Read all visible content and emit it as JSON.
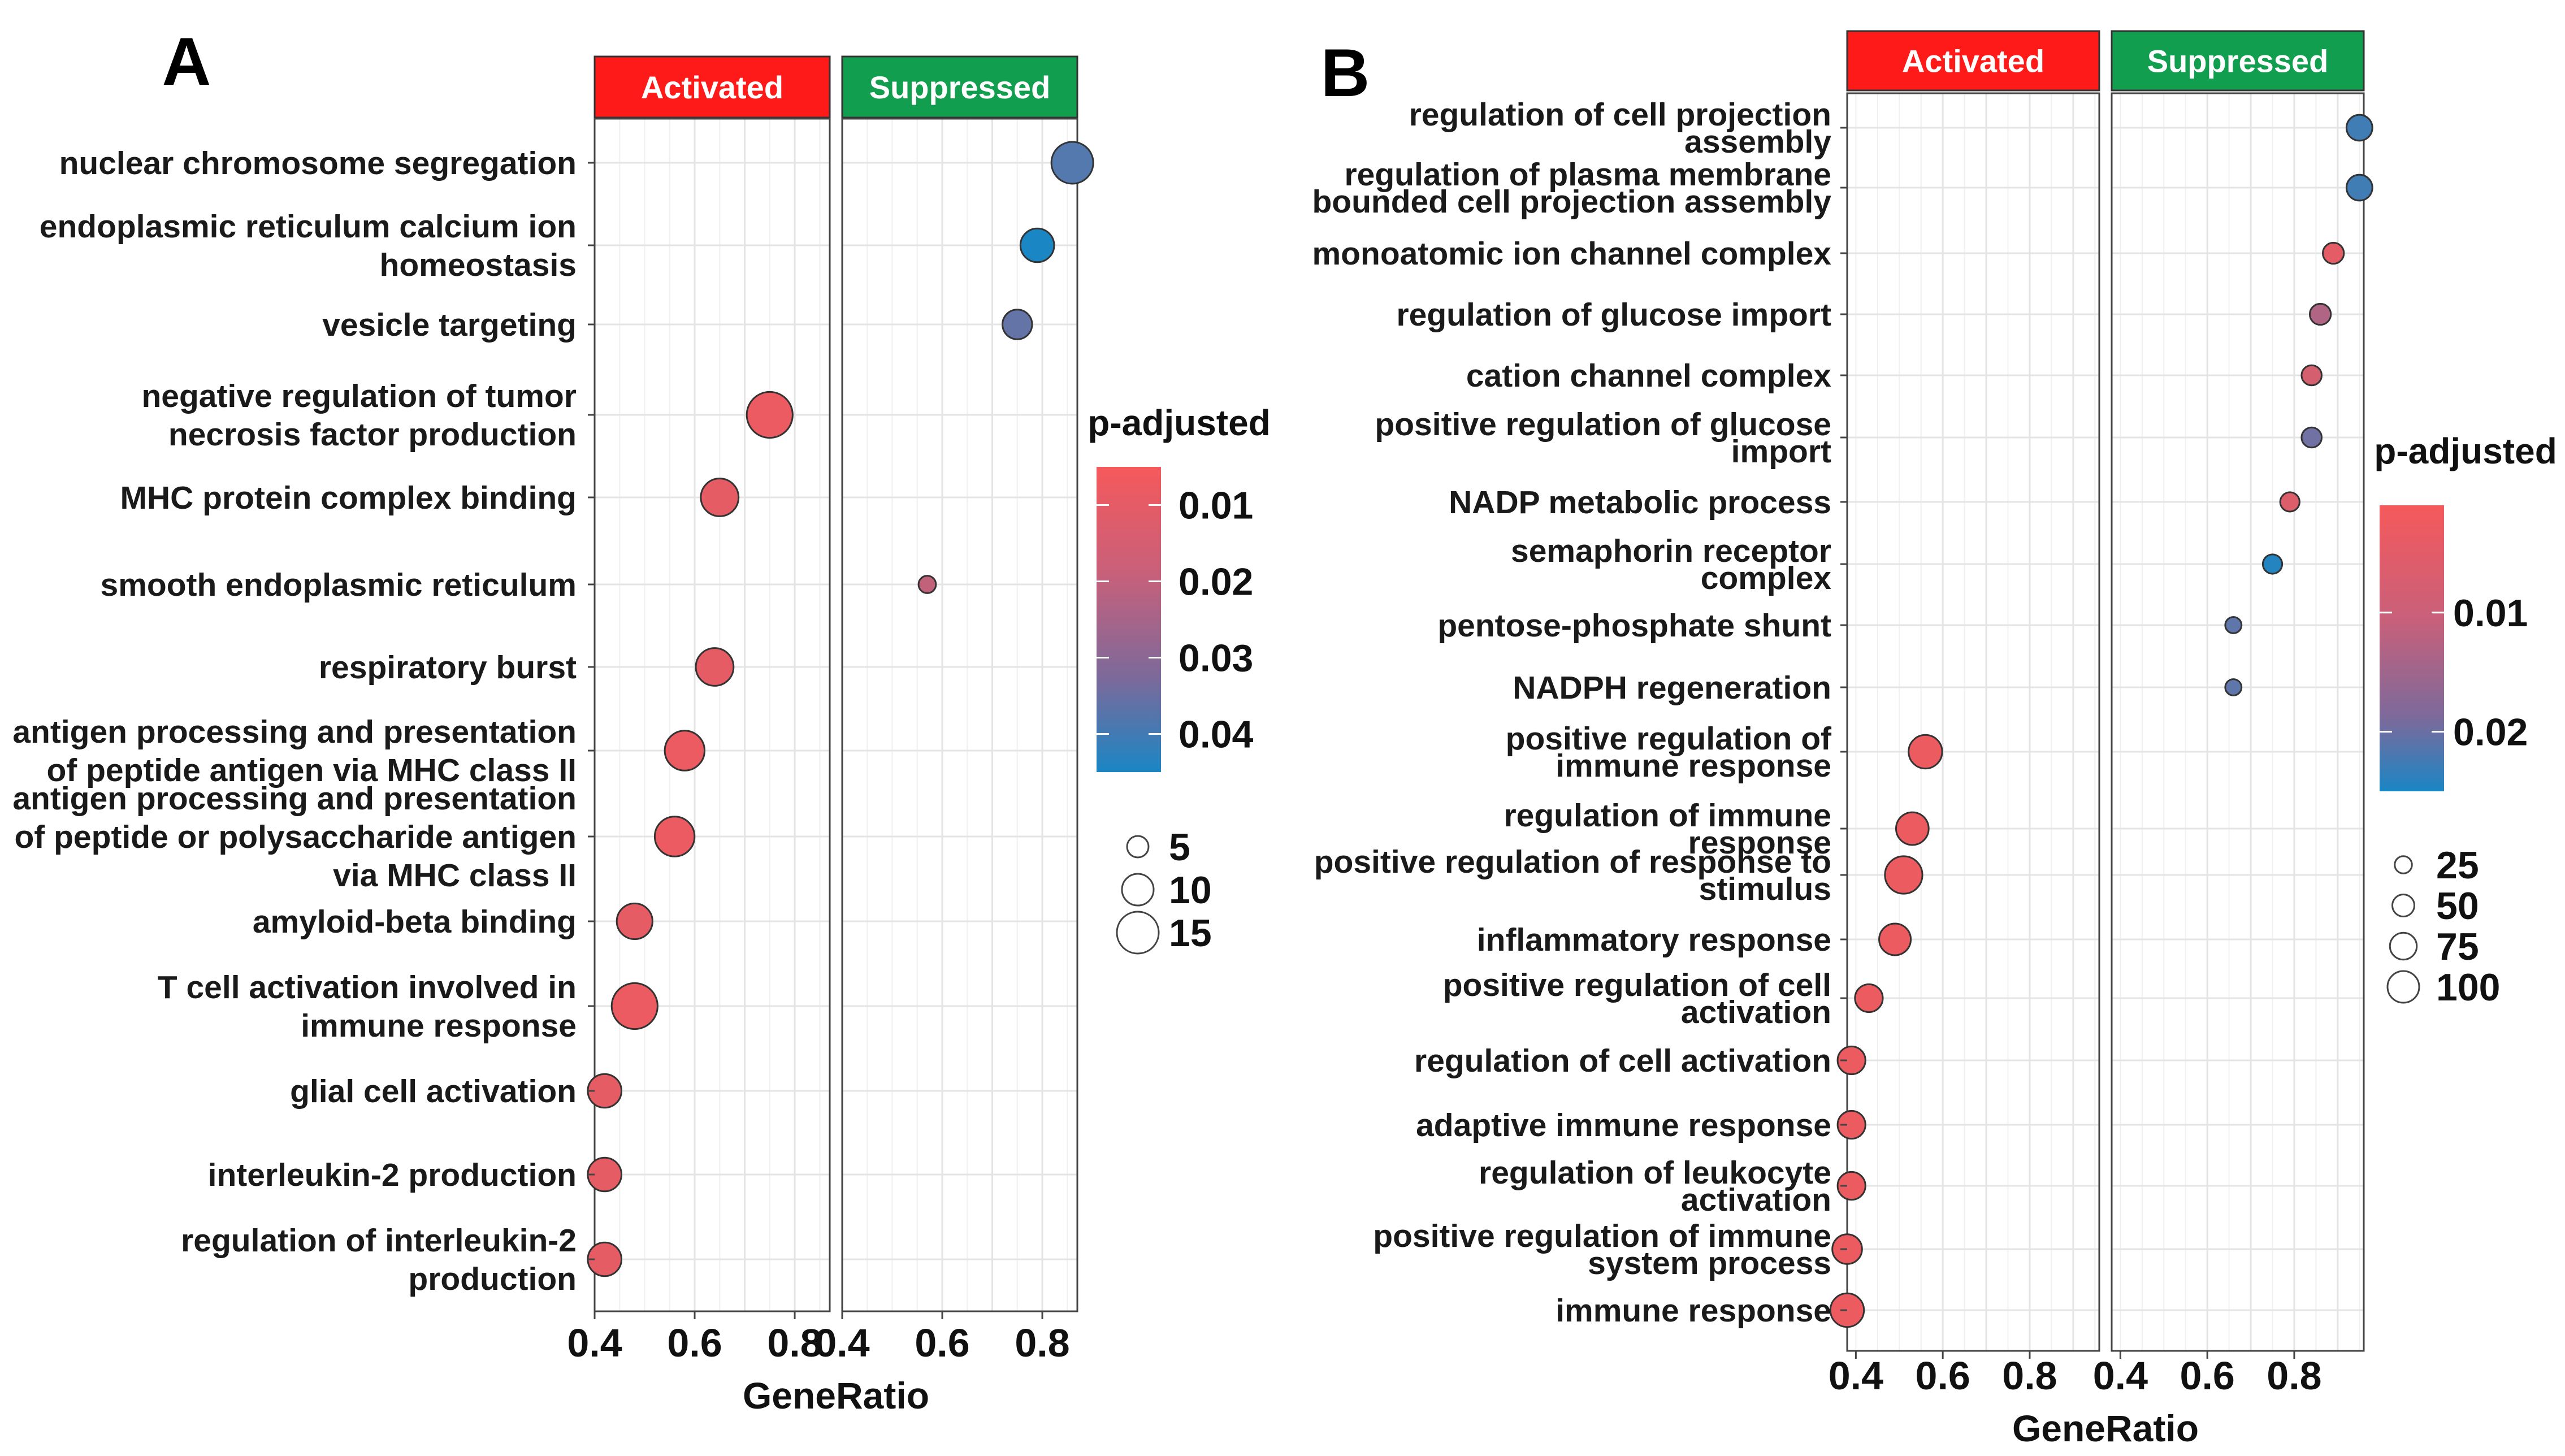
{
  "colors": {
    "activated_strip": "#ff1a1a",
    "suppressed_strip": "#129e4f",
    "low_p": "#f5595b",
    "mid_p": "#8e6b98",
    "high_p": "#1a86c4",
    "point_stroke": "#333333"
  },
  "chart_data": [
    {
      "panel": "A",
      "type": "scatter",
      "facets": [
        "Activated",
        "Suppressed"
      ],
      "xlabel": "GeneRatio",
      "xticks": [
        "0.4",
        "0.6",
        "0.8"
      ],
      "xlim": [
        0.4,
        0.87
      ],
      "color_scale": {
        "title": "p-adjusted",
        "min": 0.005,
        "max": 0.045,
        "ticks": [
          "0.01",
          "0.02",
          "0.03",
          "0.04"
        ],
        "tick_values": [
          0.01,
          0.02,
          0.03,
          0.04
        ]
      },
      "size_legend": {
        "labels": [
          "5",
          "10",
          "15"
        ],
        "values": [
          5,
          10,
          15
        ]
      },
      "terms": [
        {
          "lines": [
            "nuclear chromosome segregation"
          ],
          "facet": "Suppressed",
          "x": 0.86,
          "p": 0.035,
          "count": 15
        },
        {
          "lines": [
            "endoplasmic reticulum calcium ion",
            "homeostasis"
          ],
          "facet": "Suppressed",
          "x": 0.79,
          "p": 0.045,
          "count": 11
        },
        {
          "lines": [
            "vesicle targeting"
          ],
          "facet": "Suppressed",
          "x": 0.75,
          "p": 0.032,
          "count": 9
        },
        {
          "lines": [
            "negative regulation of tumor",
            "necrosis factor production"
          ],
          "facet": "Activated",
          "x": 0.75,
          "p": 0.007,
          "count": 17
        },
        {
          "lines": [
            "MHC protein complex binding"
          ],
          "facet": "Activated",
          "x": 0.65,
          "p": 0.008,
          "count": 13
        },
        {
          "lines": [
            "smooth endoplasmic reticulum"
          ],
          "facet": "Suppressed",
          "x": 0.57,
          "p": 0.015,
          "count": 3
        },
        {
          "lines": [
            "respiratory burst"
          ],
          "facet": "Activated",
          "x": 0.64,
          "p": 0.008,
          "count": 13
        },
        {
          "lines": [
            "antigen processing and presentation",
            "of peptide antigen via MHC class II"
          ],
          "facet": "Activated",
          "x": 0.58,
          "p": 0.007,
          "count": 14
        },
        {
          "lines": [
            "antigen processing and presentation",
            "of peptide or polysaccharide antigen",
            "via MHC class II"
          ],
          "facet": "Activated",
          "x": 0.56,
          "p": 0.007,
          "count": 14
        },
        {
          "lines": [
            "amyloid-beta binding"
          ],
          "facet": "Activated",
          "x": 0.48,
          "p": 0.008,
          "count": 12
        },
        {
          "lines": [
            "T cell activation involved in",
            "immune response"
          ],
          "facet": "Activated",
          "x": 0.48,
          "p": 0.007,
          "count": 17
        },
        {
          "lines": [
            "glial cell activation"
          ],
          "facet": "Activated",
          "x": 0.42,
          "p": 0.008,
          "count": 11
        },
        {
          "lines": [
            "interleukin-2 production"
          ],
          "facet": "Activated",
          "x": 0.42,
          "p": 0.008,
          "count": 11
        },
        {
          "lines": [
            "regulation of interleukin-2",
            "production"
          ],
          "facet": "Activated",
          "x": 0.42,
          "p": 0.008,
          "count": 11
        }
      ]
    },
    {
      "panel": "B",
      "type": "scatter",
      "facets": [
        "Activated",
        "Suppressed"
      ],
      "xlabel": "GeneRatio",
      "xticks": [
        "0.4",
        "0.6",
        "0.8"
      ],
      "xlim": [
        0.38,
        0.96
      ],
      "color_scale": {
        "title": "p-adjusted",
        "min": 0.001,
        "max": 0.025,
        "ticks": [
          "0.01",
          "0.02"
        ],
        "tick_values": [
          0.01,
          0.02
        ]
      },
      "size_legend": {
        "labels": [
          "25",
          "50",
          "75",
          "100"
        ],
        "values": [
          25,
          50,
          75,
          100
        ]
      },
      "terms": [
        {
          "lines": [
            "regulation of cell projection",
            "assembly"
          ],
          "facet": "Suppressed",
          "x": 0.95,
          "p": 0.021,
          "count": 70
        },
        {
          "lines": [
            "regulation of plasma membrane",
            "bounded cell projection assembly"
          ],
          "facet": "Suppressed",
          "x": 0.95,
          "p": 0.021,
          "count": 70
        },
        {
          "lines": [
            "monoatomic ion channel complex"
          ],
          "facet": "Suppressed",
          "x": 0.89,
          "p": 0.003,
          "count": 45
        },
        {
          "lines": [
            "regulation of glucose import"
          ],
          "facet": "Suppressed",
          "x": 0.86,
          "p": 0.009,
          "count": 45
        },
        {
          "lines": [
            "cation channel complex"
          ],
          "facet": "Suppressed",
          "x": 0.84,
          "p": 0.005,
          "count": 40
        },
        {
          "lines": [
            "positive regulation of glucose",
            "import"
          ],
          "facet": "Suppressed",
          "x": 0.84,
          "p": 0.016,
          "count": 40
        },
        {
          "lines": [
            "NADP metabolic process"
          ],
          "facet": "Suppressed",
          "x": 0.79,
          "p": 0.004,
          "count": 36
        },
        {
          "lines": [
            "semaphorin receptor",
            "complex"
          ],
          "facet": "Suppressed",
          "x": 0.75,
          "p": 0.024,
          "count": 36
        },
        {
          "lines": [
            "pentose-phosphate shunt"
          ],
          "facet": "Suppressed",
          "x": 0.66,
          "p": 0.018,
          "count": 20
        },
        {
          "lines": [
            "NADPH regeneration"
          ],
          "facet": "Suppressed",
          "x": 0.66,
          "p": 0.018,
          "count": 20
        },
        {
          "lines": [
            "positive regulation of",
            "immune response"
          ],
          "facet": "Activated",
          "x": 0.56,
          "p": 0.002,
          "count": 110
        },
        {
          "lines": [
            "regulation of immune",
            "response"
          ],
          "facet": "Activated",
          "x": 0.53,
          "p": 0.002,
          "count": 105
        },
        {
          "lines": [
            "positive regulation of response to",
            "stimulus"
          ],
          "facet": "Activated",
          "x": 0.51,
          "p": 0.002,
          "count": 130
        },
        {
          "lines": [
            "inflammatory response"
          ],
          "facet": "Activated",
          "x": 0.49,
          "p": 0.002,
          "count": 100
        },
        {
          "lines": [
            "positive regulation of cell",
            "activation"
          ],
          "facet": "Activated",
          "x": 0.43,
          "p": 0.002,
          "count": 80
        },
        {
          "lines": [
            "regulation of cell activation"
          ],
          "facet": "Activated",
          "x": 0.39,
          "p": 0.002,
          "count": 80
        },
        {
          "lines": [
            "adaptive immune response"
          ],
          "facet": "Activated",
          "x": 0.39,
          "p": 0.002,
          "count": 80
        },
        {
          "lines": [
            "regulation of leukocyte",
            "activation"
          ],
          "facet": "Activated",
          "x": 0.39,
          "p": 0.002,
          "count": 80
        },
        {
          "lines": [
            "positive regulation of immune",
            "system process"
          ],
          "facet": "Activated",
          "x": 0.38,
          "p": 0.002,
          "count": 90
        },
        {
          "lines": [
            "immune response"
          ],
          "facet": "Activated",
          "x": 0.38,
          "p": 0.002,
          "count": 110
        }
      ]
    }
  ]
}
